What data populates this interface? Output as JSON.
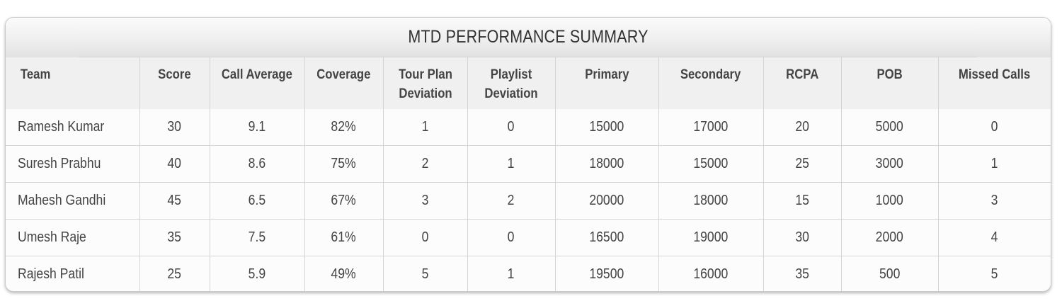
{
  "title": "MTD  PERFORMANCE SUMMARY",
  "columns": [
    "Team",
    "Score",
    "Call Average",
    "Coverage",
    "Tour Plan Deviation",
    "Playlist Deviation",
    "Primary",
    "Secondary",
    "RCPA",
    "POB",
    "Missed Calls"
  ],
  "rows": [
    [
      "Ramesh Kumar",
      "30",
      "9.1",
      "82%",
      "1",
      "0",
      "15000",
      "17000",
      "20",
      "5000",
      "0"
    ],
    [
      "Suresh Prabhu",
      "40",
      "8.6",
      "75%",
      "2",
      "1",
      "18000",
      "15000",
      "25",
      "3000",
      "1"
    ],
    [
      "Mahesh Gandhi",
      "45",
      "6.5",
      "67%",
      "3",
      "2",
      "20000",
      "18000",
      "15",
      "1000",
      "3"
    ],
    [
      "Umesh Raje",
      "35",
      "7.5",
      "61%",
      "0",
      "0",
      "16500",
      "19000",
      "30",
      "2000",
      "4"
    ],
    [
      "Rajesh Patil",
      "25",
      "5.9",
      "49%",
      "5",
      "1",
      "19500",
      "16000",
      "35",
      "500",
      "5"
    ]
  ]
}
